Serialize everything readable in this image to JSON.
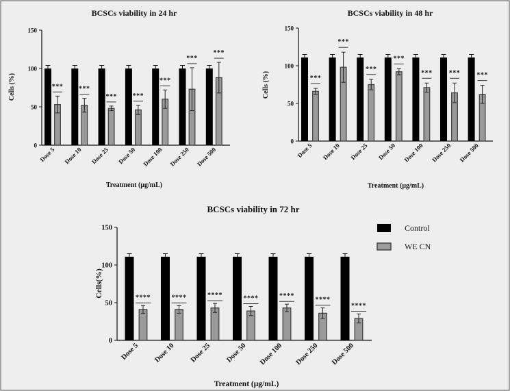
{
  "colors": {
    "background": "#eeeeee",
    "control": "#000000",
    "treatment": "#9a9a9a",
    "treatment_border": "#444444"
  },
  "legend": {
    "position": "right of bottom chart",
    "items": [
      {
        "label": "Control",
        "color": "#000000"
      },
      {
        "label": "WE CN",
        "color": "#9a9a9a"
      }
    ]
  },
  "chart_data": [
    {
      "type": "bar",
      "title": "BCSCs viability in 24 hr",
      "xlabel": "Treatment (μg/mL)",
      "ylabel": "Cells (%)",
      "ylim": [
        0,
        150
      ],
      "yticks": [
        0,
        50,
        100,
        150
      ],
      "categories": [
        "Dose 5",
        "Dose 10",
        "Dose 25",
        "Dose 50",
        "Dose 100",
        "Dose 250",
        "Dose 500"
      ],
      "series": [
        {
          "name": "Control",
          "values": [
            100,
            100,
            100,
            100,
            100,
            100,
            100
          ],
          "errors": [
            4,
            4,
            4,
            4,
            4,
            4,
            4
          ]
        },
        {
          "name": "WE CN",
          "values": [
            53,
            52,
            48,
            46,
            60,
            73,
            88
          ],
          "errors": [
            11,
            9,
            3,
            6,
            12,
            28,
            20
          ]
        }
      ],
      "annotations": [
        "***",
        "***",
        "***",
        "***",
        "***",
        "***",
        "***"
      ]
    },
    {
      "type": "bar",
      "title": "BCSCs viability in 48 hr",
      "xlabel": "Treatment (μg/mL)",
      "ylabel": "Cells (%)",
      "ylim": [
        0,
        150
      ],
      "yticks": [
        0,
        50,
        100,
        150
      ],
      "categories": [
        "Dose 5",
        "Dose 10",
        "Dose 25",
        "Dose 50",
        "Dose 100",
        "Dose 250",
        "Dose 500"
      ],
      "series": [
        {
          "name": "Control",
          "values": [
            111,
            111,
            111,
            111,
            111,
            111,
            111
          ],
          "errors": [
            4,
            4,
            4,
            4,
            4,
            4,
            4
          ]
        },
        {
          "name": "WE CN",
          "values": [
            66,
            98,
            75,
            92,
            71,
            64,
            62
          ],
          "errors": [
            4,
            20,
            7,
            4,
            6,
            13,
            12
          ]
        }
      ],
      "annotations": [
        "***",
        "***",
        "***",
        "***",
        "***",
        "***",
        "***"
      ]
    },
    {
      "type": "bar",
      "title": "BCSCs viability in 72 hr",
      "xlabel": "Treatment (μg/mL)",
      "ylabel": "Cells(%)",
      "ylim": [
        0,
        150
      ],
      "yticks": [
        0,
        50,
        100,
        150
      ],
      "categories": [
        "Dose 5",
        "Dose 10",
        "Dose 25",
        "Dose 50",
        "Dose 100",
        "Dose 250",
        "Dose 500"
      ],
      "series": [
        {
          "name": "Control",
          "values": [
            111,
            111,
            111,
            111,
            111,
            111,
            111
          ],
          "errors": [
            4,
            4,
            4,
            4,
            4,
            4,
            4
          ]
        },
        {
          "name": "WE CN",
          "values": [
            41,
            41,
            43,
            39,
            43,
            36,
            29
          ],
          "errors": [
            5,
            5,
            6,
            6,
            5,
            7,
            6
          ]
        }
      ],
      "annotations": [
        "****",
        "****",
        "****",
        "****",
        "****",
        "****",
        "****"
      ]
    }
  ]
}
